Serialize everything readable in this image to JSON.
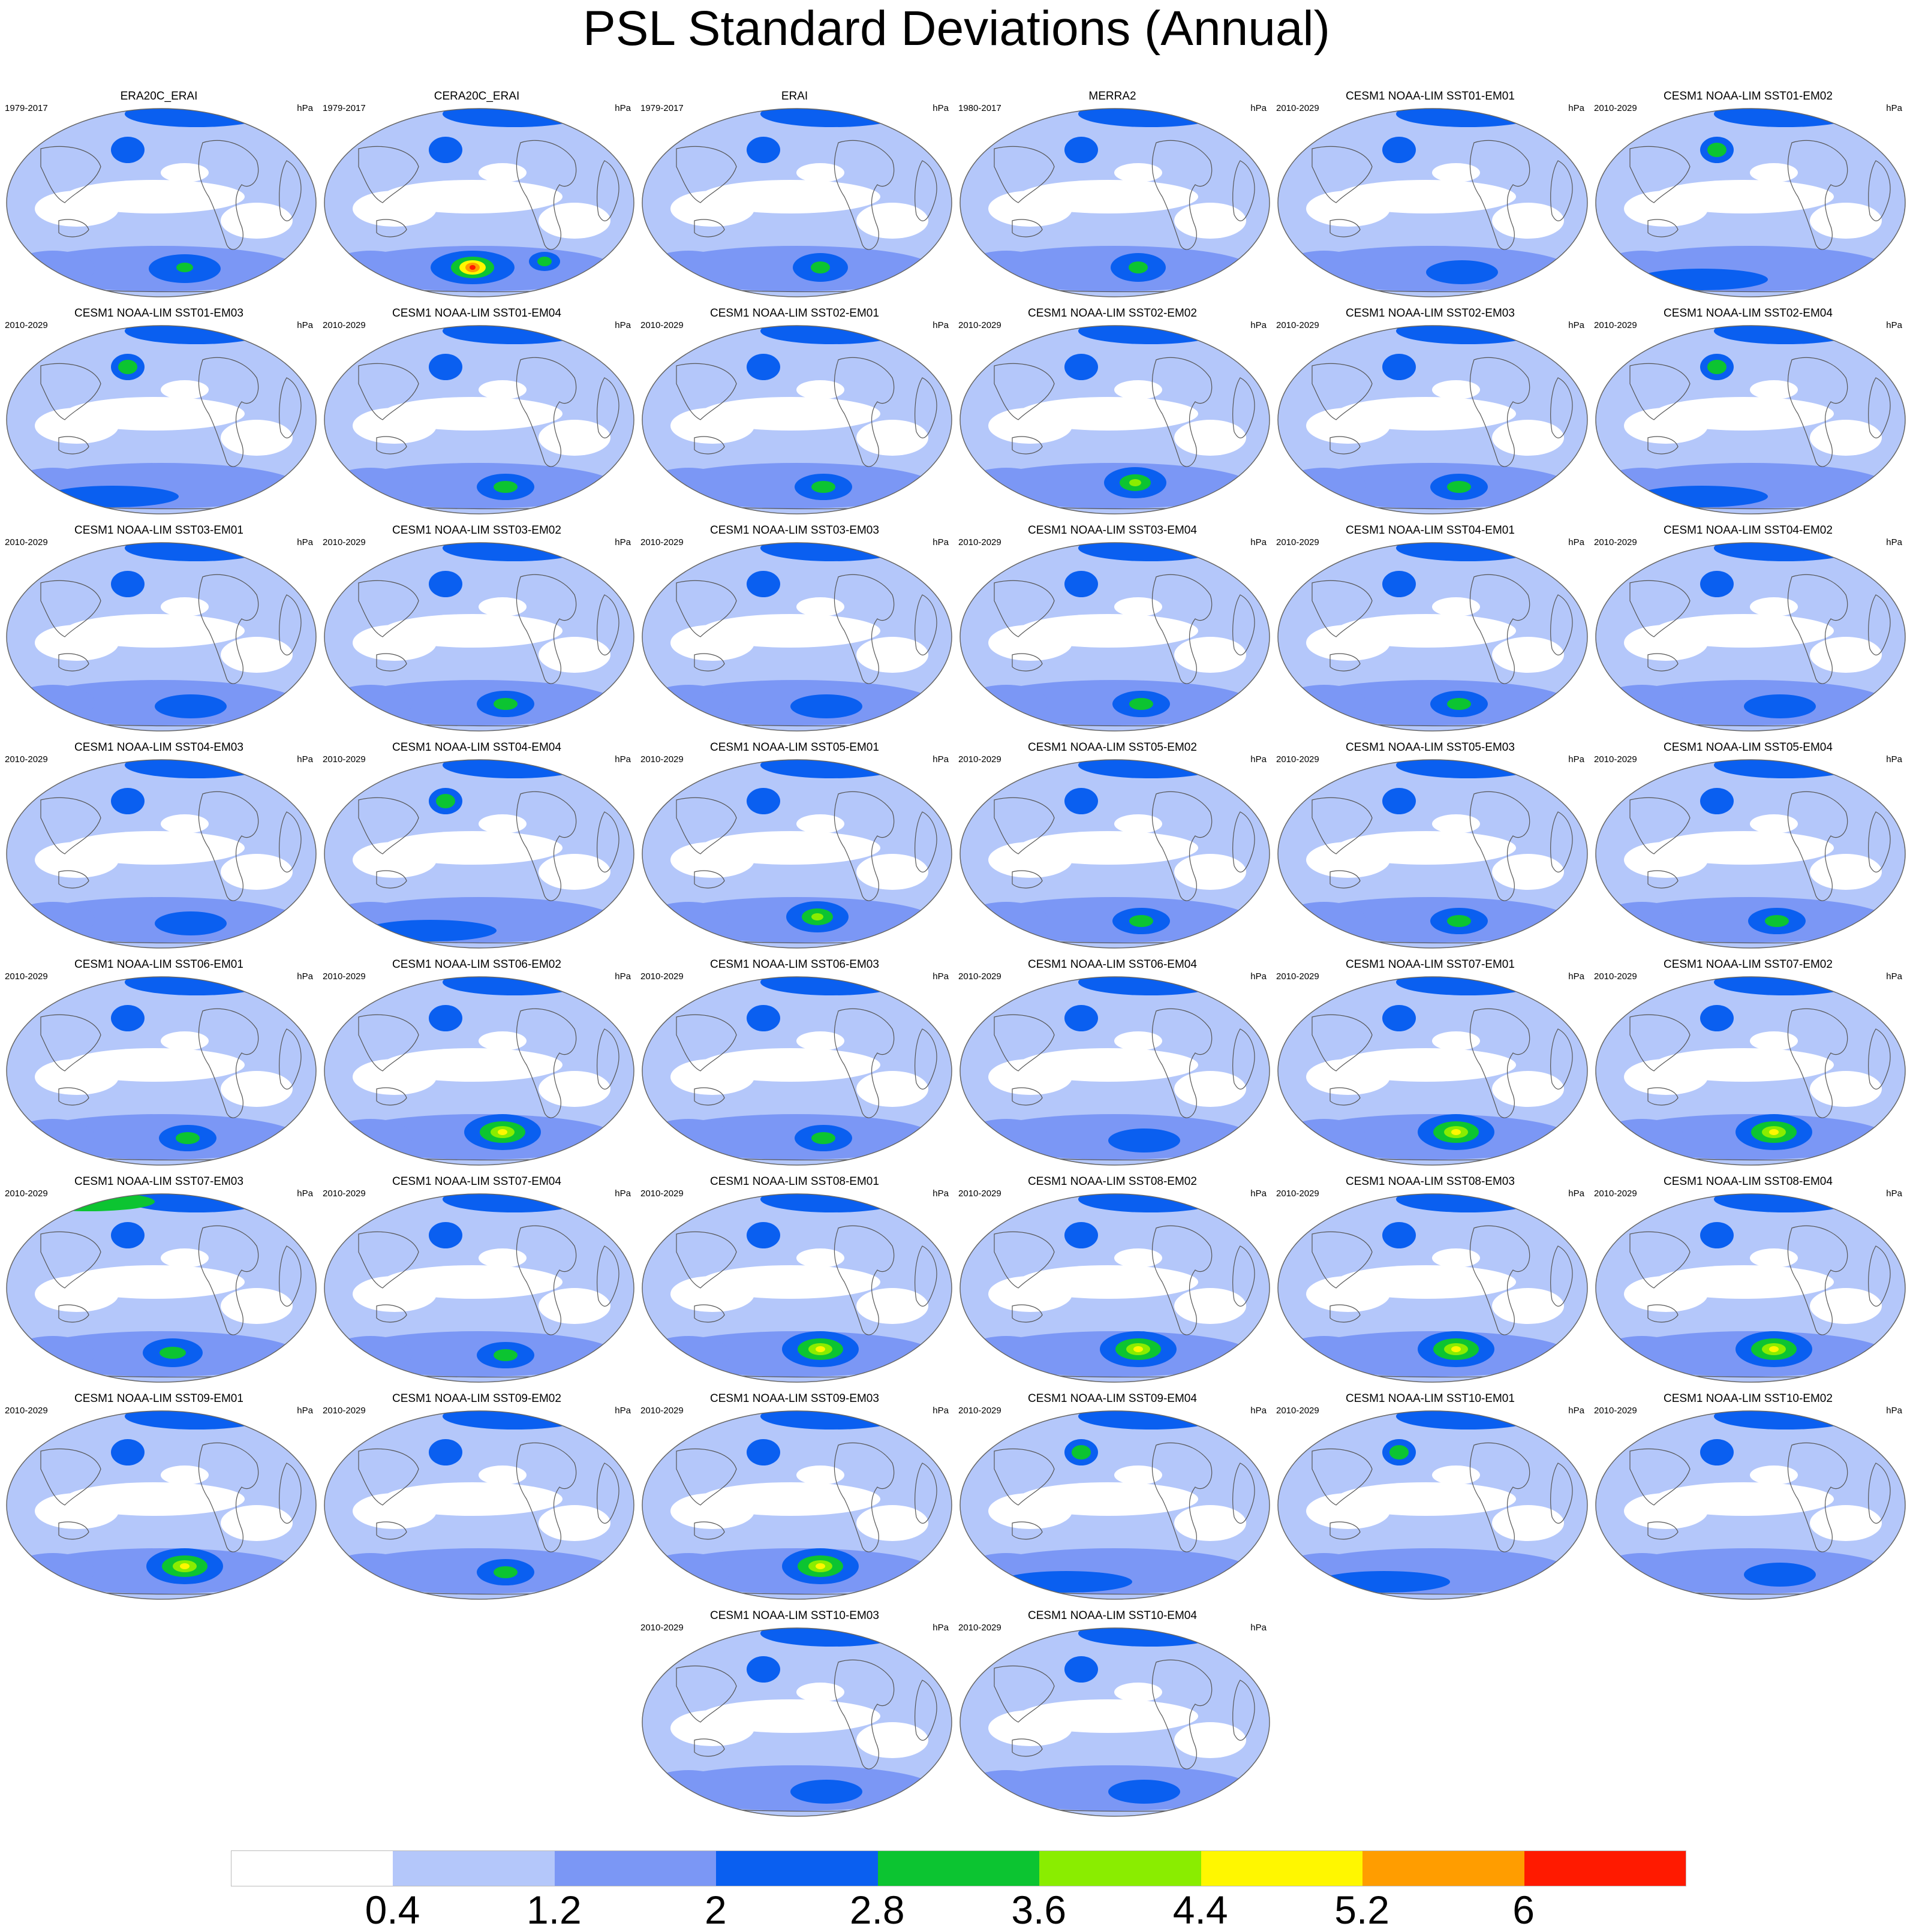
{
  "title": "PSL Standard Deviations (Annual)",
  "unit_label": "hPa",
  "colorbar": {
    "labels": [
      "0.4",
      "1.2",
      "2",
      "2.8",
      "3.6",
      "4.4",
      "5.2",
      "6"
    ],
    "colors": [
      "#ffffff",
      "#b4c7fa",
      "#7b97f5",
      "#0a5ff0",
      "#0cc431",
      "#8aed00",
      "#fff700",
      "#ff9d00",
      "#ff1a00"
    ]
  },
  "panels": [
    {
      "name": "ERA20C_ERAI",
      "period": "1979-2017",
      "style": "a"
    },
    {
      "name": "CERA20C_ERAI",
      "period": "1979-2017",
      "style": "cera"
    },
    {
      "name": "ERAI",
      "period": "1979-2017",
      "style": "b"
    },
    {
      "name": "MERRA2",
      "period": "1980-2017",
      "style": "b"
    },
    {
      "name": "CESM1 NOAA-LIM SST01-EM01",
      "period": "2010-2029",
      "style": "c"
    },
    {
      "name": "CESM1 NOAA-LIM SST01-EM02",
      "period": "2010-2029",
      "style": "d"
    },
    {
      "name": "CESM1 NOAA-LIM SST01-EM03",
      "period": "2010-2029",
      "style": "d"
    },
    {
      "name": "CESM1 NOAA-LIM SST01-EM04",
      "period": "2010-2029",
      "style": "e"
    },
    {
      "name": "CESM1 NOAA-LIM SST02-EM01",
      "period": "2010-2029",
      "style": "e"
    },
    {
      "name": "CESM1 NOAA-LIM SST02-EM02",
      "period": "2010-2029",
      "style": "f"
    },
    {
      "name": "CESM1 NOAA-LIM SST02-EM03",
      "period": "2010-2029",
      "style": "e"
    },
    {
      "name": "CESM1 NOAA-LIM SST02-EM04",
      "period": "2010-2029",
      "style": "d"
    },
    {
      "name": "CESM1 NOAA-LIM SST03-EM01",
      "period": "2010-2029",
      "style": "c"
    },
    {
      "name": "CESM1 NOAA-LIM SST03-EM02",
      "period": "2010-2029",
      "style": "e"
    },
    {
      "name": "CESM1 NOAA-LIM SST03-EM03",
      "period": "2010-2029",
      "style": "c"
    },
    {
      "name": "CESM1 NOAA-LIM SST03-EM04",
      "period": "2010-2029",
      "style": "e"
    },
    {
      "name": "CESM1 NOAA-LIM SST04-EM01",
      "period": "2010-2029",
      "style": "e"
    },
    {
      "name": "CESM1 NOAA-LIM SST04-EM02",
      "period": "2010-2029",
      "style": "c"
    },
    {
      "name": "CESM1 NOAA-LIM SST04-EM03",
      "period": "2010-2029",
      "style": "c"
    },
    {
      "name": "CESM1 NOAA-LIM SST04-EM04",
      "period": "2010-2029",
      "style": "d"
    },
    {
      "name": "CESM1 NOAA-LIM SST05-EM01",
      "period": "2010-2029",
      "style": "f"
    },
    {
      "name": "CESM1 NOAA-LIM SST05-EM02",
      "period": "2010-2029",
      "style": "e"
    },
    {
      "name": "CESM1 NOAA-LIM SST05-EM03",
      "period": "2010-2029",
      "style": "e"
    },
    {
      "name": "CESM1 NOAA-LIM SST05-EM04",
      "period": "2010-2029",
      "style": "e"
    },
    {
      "name": "CESM1 NOAA-LIM SST06-EM01",
      "period": "2010-2029",
      "style": "e"
    },
    {
      "name": "CESM1 NOAA-LIM SST06-EM02",
      "period": "2010-2029",
      "style": "g"
    },
    {
      "name": "CESM1 NOAA-LIM SST06-EM03",
      "period": "2010-2029",
      "style": "e"
    },
    {
      "name": "CESM1 NOAA-LIM SST06-EM04",
      "period": "2010-2029",
      "style": "c"
    },
    {
      "name": "CESM1 NOAA-LIM SST07-EM01",
      "period": "2010-2029",
      "style": "g"
    },
    {
      "name": "CESM1 NOAA-LIM SST07-EM02",
      "period": "2010-2029",
      "style": "g"
    },
    {
      "name": "CESM1 NOAA-LIM SST07-EM03",
      "period": "2010-2029",
      "style": "h"
    },
    {
      "name": "CESM1 NOAA-LIM SST07-EM04",
      "period": "2010-2029",
      "style": "e"
    },
    {
      "name": "CESM1 NOAA-LIM SST08-EM01",
      "period": "2010-2029",
      "style": "g"
    },
    {
      "name": "CESM1 NOAA-LIM SST08-EM02",
      "period": "2010-2029",
      "style": "g"
    },
    {
      "name": "CESM1 NOAA-LIM SST08-EM03",
      "period": "2010-2029",
      "style": "g"
    },
    {
      "name": "CESM1 NOAA-LIM SST08-EM04",
      "period": "2010-2029",
      "style": "g"
    },
    {
      "name": "CESM1 NOAA-LIM SST09-EM01",
      "period": "2010-2029",
      "style": "g"
    },
    {
      "name": "CESM1 NOAA-LIM SST09-EM02",
      "period": "2010-2029",
      "style": "e"
    },
    {
      "name": "CESM1 NOAA-LIM SST09-EM03",
      "period": "2010-2029",
      "style": "g"
    },
    {
      "name": "CESM1 NOAA-LIM SST09-EM04",
      "period": "2010-2029",
      "style": "d"
    },
    {
      "name": "CESM1 NOAA-LIM SST10-EM01",
      "period": "2010-2029",
      "style": "d"
    },
    {
      "name": "CESM1 NOAA-LIM SST10-EM02",
      "period": "2010-2029",
      "style": "c"
    },
    {
      "name": "CESM1 NOAA-LIM SST10-EM03",
      "period": "2010-2029",
      "style": "c"
    },
    {
      "name": "CESM1 NOAA-LIM SST10-EM04",
      "period": "2010-2029",
      "style": "c"
    }
  ]
}
